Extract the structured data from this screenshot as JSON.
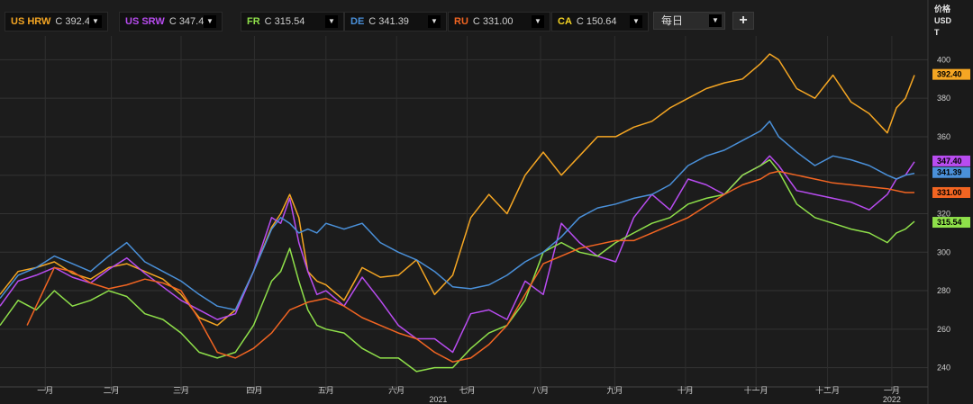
{
  "toolbar": {
    "interval_label": "每日",
    "interval_dropdown_icon": "chevron-down-icon",
    "add_button_label": "+"
  },
  "legend": [
    {
      "name": "US HRW",
      "value": "C 392.40",
      "color": "#f5a623"
    },
    {
      "name": "US SRW",
      "value": "C 347.40",
      "color": "#b84cf0"
    },
    {
      "name": "FR",
      "value": "C 315.54",
      "color": "#8fe04a"
    },
    {
      "name": "DE",
      "value": "C 341.39",
      "color": "#4a90d9"
    },
    {
      "name": "RU",
      "value": "C 331.00",
      "color": "#f26522"
    },
    {
      "name": "CA",
      "value": "C 150.64",
      "color": "#f5d423"
    }
  ],
  "axis_header": {
    "line1": "价格",
    "line2": "USD",
    "line3": "T"
  },
  "chart_data": {
    "type": "line",
    "ylim": [
      230,
      410
    ],
    "yticks": [
      240,
      260,
      280,
      300,
      320,
      340,
      360,
      380,
      400
    ],
    "ytick_labels": [
      "240",
      "260",
      "280",
      "300",
      "320",
      "340",
      "360",
      "380",
      "400"
    ],
    "x_domain": [
      0,
      1000
    ],
    "month_ticks": [
      {
        "x": 50,
        "label": "一月"
      },
      {
        "x": 123,
        "label": "二月"
      },
      {
        "x": 200,
        "label": "三月"
      },
      {
        "x": 281,
        "label": "四月"
      },
      {
        "x": 360,
        "label": "五月"
      },
      {
        "x": 438,
        "label": "六月"
      },
      {
        "x": 516,
        "label": "七月"
      },
      {
        "x": 597,
        "label": "八月"
      },
      {
        "x": 679,
        "label": "九月"
      },
      {
        "x": 757,
        "label": "十月"
      },
      {
        "x": 835,
        "label": "十一月"
      },
      {
        "x": 914,
        "label": "十二月"
      },
      {
        "x": 985,
        "label": "一月"
      }
    ],
    "year_ticks": [
      {
        "x": 484,
        "label": "2021"
      },
      {
        "x": 985,
        "label": "2022"
      }
    ],
    "last_value_labels": [
      {
        "series": "US HRW",
        "value": 392.4,
        "text": "392.40",
        "color": "#f5a623",
        "text_color": "#000000"
      },
      {
        "series": "US SRW",
        "value": 347.4,
        "text": "347.40",
        "color": "#b84cf0",
        "text_color": "#000000"
      },
      {
        "series": "DE",
        "value": 341.39,
        "text": "341.39",
        "color": "#4a90d9",
        "text_color": "#000000"
      },
      {
        "series": "RU",
        "value": 331.0,
        "text": "331.00",
        "color": "#f26522",
        "text_color": "#000000"
      },
      {
        "series": "FR",
        "value": 315.54,
        "text": "315.54",
        "color": "#8fe04a",
        "text_color": "#000000"
      }
    ],
    "series": [
      {
        "name": "US HRW",
        "color": "#f5a623",
        "x": [
          0,
          20,
          40,
          60,
          80,
          100,
          120,
          140,
          160,
          180,
          200,
          220,
          240,
          260,
          280,
          300,
          310,
          320,
          330,
          340,
          350,
          360,
          380,
          400,
          420,
          440,
          460,
          480,
          500,
          520,
          540,
          560,
          580,
          600,
          620,
          640,
          660,
          680,
          700,
          720,
          740,
          760,
          780,
          800,
          820,
          840,
          850,
          860,
          880,
          900,
          920,
          940,
          960,
          980,
          990,
          1000,
          1010
        ],
        "y": [
          278,
          290,
          292,
          295,
          289,
          286,
          292,
          294,
          290,
          286,
          278,
          266,
          262,
          270,
          290,
          313,
          320,
          330,
          318,
          290,
          285,
          283,
          275,
          292,
          287,
          288,
          296,
          278,
          288,
          318,
          330,
          320,
          340,
          352,
          340,
          350,
          360,
          360,
          365,
          368,
          375,
          380,
          385,
          388,
          390,
          398,
          403,
          400,
          385,
          380,
          392,
          378,
          372,
          362,
          375,
          380,
          392
        ]
      },
      {
        "name": "US SRW",
        "color": "#b84cf0",
        "x": [
          0,
          20,
          40,
          60,
          80,
          100,
          120,
          140,
          160,
          180,
          200,
          220,
          240,
          260,
          280,
          300,
          310,
          320,
          330,
          340,
          350,
          360,
          380,
          400,
          420,
          440,
          460,
          480,
          500,
          520,
          540,
          560,
          580,
          600,
          620,
          640,
          660,
          680,
          700,
          720,
          740,
          760,
          780,
          800,
          820,
          840,
          850,
          860,
          880,
          900,
          920,
          940,
          960,
          980,
          990,
          1000,
          1010
        ],
        "y": [
          272,
          285,
          288,
          292,
          287,
          284,
          291,
          297,
          289,
          282,
          275,
          270,
          265,
          268,
          290,
          318,
          315,
          328,
          305,
          290,
          278,
          280,
          272,
          287,
          275,
          262,
          255,
          255,
          248,
          268,
          270,
          265,
          285,
          278,
          315,
          305,
          298,
          295,
          318,
          330,
          322,
          338,
          335,
          330,
          340,
          345,
          350,
          345,
          332,
          330,
          328,
          326,
          322,
          330,
          338,
          340,
          347
        ]
      },
      {
        "name": "FR",
        "color": "#8fe04a",
        "x": [
          0,
          20,
          40,
          60,
          80,
          100,
          120,
          140,
          160,
          180,
          200,
          220,
          240,
          260,
          280,
          300,
          310,
          320,
          330,
          340,
          350,
          360,
          380,
          400,
          420,
          440,
          460,
          480,
          500,
          520,
          540,
          560,
          580,
          600,
          620,
          640,
          660,
          680,
          700,
          720,
          740,
          760,
          780,
          800,
          820,
          840,
          850,
          860,
          880,
          900,
          920,
          940,
          960,
          980,
          990,
          1000,
          1010
        ],
        "y": [
          262,
          275,
          270,
          280,
          272,
          275,
          280,
          277,
          268,
          265,
          258,
          248,
          245,
          248,
          262,
          285,
          290,
          302,
          285,
          270,
          262,
          260,
          258,
          250,
          245,
          245,
          238,
          240,
          240,
          250,
          258,
          262,
          275,
          300,
          305,
          300,
          298,
          305,
          310,
          315,
          318,
          325,
          328,
          330,
          340,
          345,
          348,
          342,
          325,
          318,
          315,
          312,
          310,
          305,
          310,
          312,
          316
        ]
      },
      {
        "name": "DE",
        "color": "#4a90d9",
        "x": [
          0,
          20,
          40,
          60,
          80,
          100,
          120,
          140,
          160,
          180,
          200,
          220,
          240,
          260,
          280,
          300,
          310,
          320,
          330,
          340,
          350,
          360,
          380,
          400,
          420,
          440,
          460,
          480,
          500,
          520,
          540,
          560,
          580,
          600,
          620,
          640,
          660,
          680,
          700,
          720,
          740,
          760,
          780,
          800,
          820,
          840,
          850,
          860,
          880,
          900,
          920,
          940,
          960,
          980,
          990,
          1000,
          1010
        ],
        "y": [
          276,
          288,
          292,
          298,
          294,
          290,
          298,
          305,
          295,
          290,
          285,
          278,
          272,
          270,
          290,
          312,
          318,
          315,
          310,
          312,
          310,
          315,
          312,
          315,
          305,
          300,
          296,
          290,
          282,
          281,
          283,
          288,
          295,
          300,
          308,
          318,
          323,
          325,
          328,
          330,
          335,
          345,
          350,
          353,
          358,
          363,
          368,
          360,
          352,
          345,
          350,
          348,
          345,
          340,
          338,
          340,
          341
        ]
      },
      {
        "name": "RU",
        "color": "#f26522",
        "x": [
          30,
          60,
          80,
          100,
          120,
          140,
          160,
          180,
          200,
          220,
          240,
          260,
          280,
          300,
          320,
          340,
          360,
          380,
          400,
          420,
          440,
          460,
          480,
          500,
          520,
          540,
          560,
          580,
          600,
          620,
          640,
          660,
          680,
          700,
          720,
          740,
          760,
          780,
          800,
          820,
          840,
          850,
          860,
          880,
          900,
          920,
          940,
          960,
          980,
          1000,
          1010
        ],
        "y": [
          262,
          292,
          290,
          284,
          281,
          283,
          286,
          284,
          280,
          265,
          248,
          245,
          250,
          258,
          270,
          274,
          276,
          272,
          266,
          262,
          258,
          255,
          248,
          243,
          245,
          252,
          262,
          278,
          294,
          298,
          302,
          304,
          306,
          306,
          310,
          314,
          318,
          324,
          330,
          335,
          338,
          341,
          342,
          340,
          338,
          336,
          335,
          334,
          333,
          331,
          331
        ]
      }
    ]
  }
}
